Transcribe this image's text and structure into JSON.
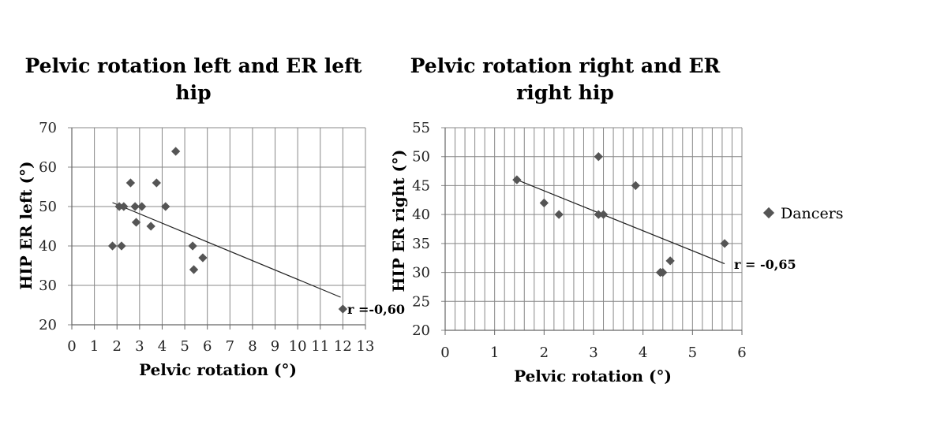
{
  "chart_data": [
    {
      "type": "scatter",
      "title_lines": [
        "Pelvic rotation left and ER left",
        "hip"
      ],
      "xlabel": "Pelvic rotation (°)",
      "ylabel": "HIP ER left  (°)",
      "xlim": [
        0,
        13
      ],
      "ylim": [
        20,
        70
      ],
      "xticks": [
        "0",
        "1",
        "2",
        "3",
        "4",
        "5",
        "6",
        "7",
        "8",
        "9",
        "10",
        "11",
        "12",
        "13"
      ],
      "yticks": [
        "20",
        "30",
        "40",
        "50",
        "60",
        "70"
      ],
      "grid": true,
      "series": [
        {
          "name": "Dancers",
          "points": [
            [
              1.8,
              40
            ],
            [
              2.1,
              50
            ],
            [
              2.2,
              40
            ],
            [
              2.3,
              50
            ],
            [
              2.6,
              56
            ],
            [
              2.8,
              50
            ],
            [
              2.85,
              46
            ],
            [
              3.1,
              50
            ],
            [
              3.5,
              45
            ],
            [
              3.75,
              56
            ],
            [
              4.15,
              50
            ],
            [
              4.6,
              64
            ],
            [
              5.35,
              40
            ],
            [
              5.4,
              34
            ],
            [
              5.8,
              37
            ],
            [
              12,
              24
            ]
          ]
        }
      ],
      "trendline": [
        [
          1.8,
          51
        ],
        [
          11.9,
          27
        ]
      ],
      "annotation": "r =-0,60"
    },
    {
      "type": "scatter",
      "title_lines": [
        "Pelvic rotation right  and ER",
        "right hip"
      ],
      "xlabel": "Pelvic rotation (°)",
      "ylabel": "HIP ER right  (°)",
      "xlim": [
        0,
        6
      ],
      "ylim": [
        20,
        55
      ],
      "xticks": [
        "0",
        "1",
        "2",
        "3",
        "4",
        "5",
        "6"
      ],
      "yticks": [
        "20",
        "25",
        "30",
        "35",
        "40",
        "45",
        "50",
        "55"
      ],
      "grid": true,
      "series": [
        {
          "name": "Dancers",
          "points": [
            [
              1.45,
              46
            ],
            [
              2.0,
              42
            ],
            [
              2.3,
              40
            ],
            [
              3.1,
              50
            ],
            [
              3.1,
              40
            ],
            [
              3.2,
              40
            ],
            [
              3.85,
              45
            ],
            [
              4.35,
              30
            ],
            [
              4.4,
              30
            ],
            [
              4.55,
              32
            ],
            [
              5.65,
              35
            ]
          ]
        }
      ],
      "trendline": [
        [
          1.45,
          46
        ],
        [
          5.65,
          31.5
        ]
      ],
      "annotation": "r = -0,65"
    }
  ],
  "legend": {
    "label": "Dancers",
    "position": "right",
    "marker_color": "#555555"
  },
  "colors": {
    "marker": "#555555",
    "grid": "#888888",
    "line": "#222222"
  }
}
